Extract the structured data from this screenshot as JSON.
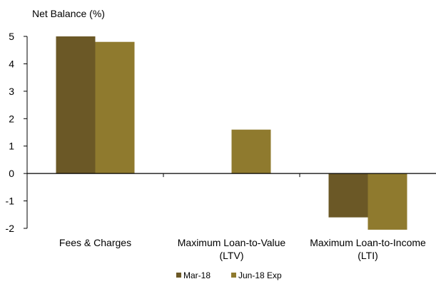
{
  "chart_data": {
    "type": "bar",
    "ylabel": "Net Balance (%)",
    "categories": [
      [
        "Fees & Charges"
      ],
      [
        "Maximum Loan-to-Value",
        "(LTV)"
      ],
      [
        "Maximum Loan-to-Income",
        "(LTI)"
      ]
    ],
    "series": [
      {
        "name": "Mar-18",
        "values": [
          5.0,
          0,
          -1.6
        ],
        "color": "#6b5826"
      },
      {
        "name": "Jun-18 Exp",
        "values": [
          4.8,
          1.6,
          -2.05
        ],
        "color": "#8f7a2e"
      }
    ],
    "ylim": [
      -2,
      5
    ],
    "yticks": [
      5,
      4,
      3,
      2,
      1,
      0,
      -1,
      -2
    ],
    "grid": false,
    "legend": "bottom-center"
  }
}
